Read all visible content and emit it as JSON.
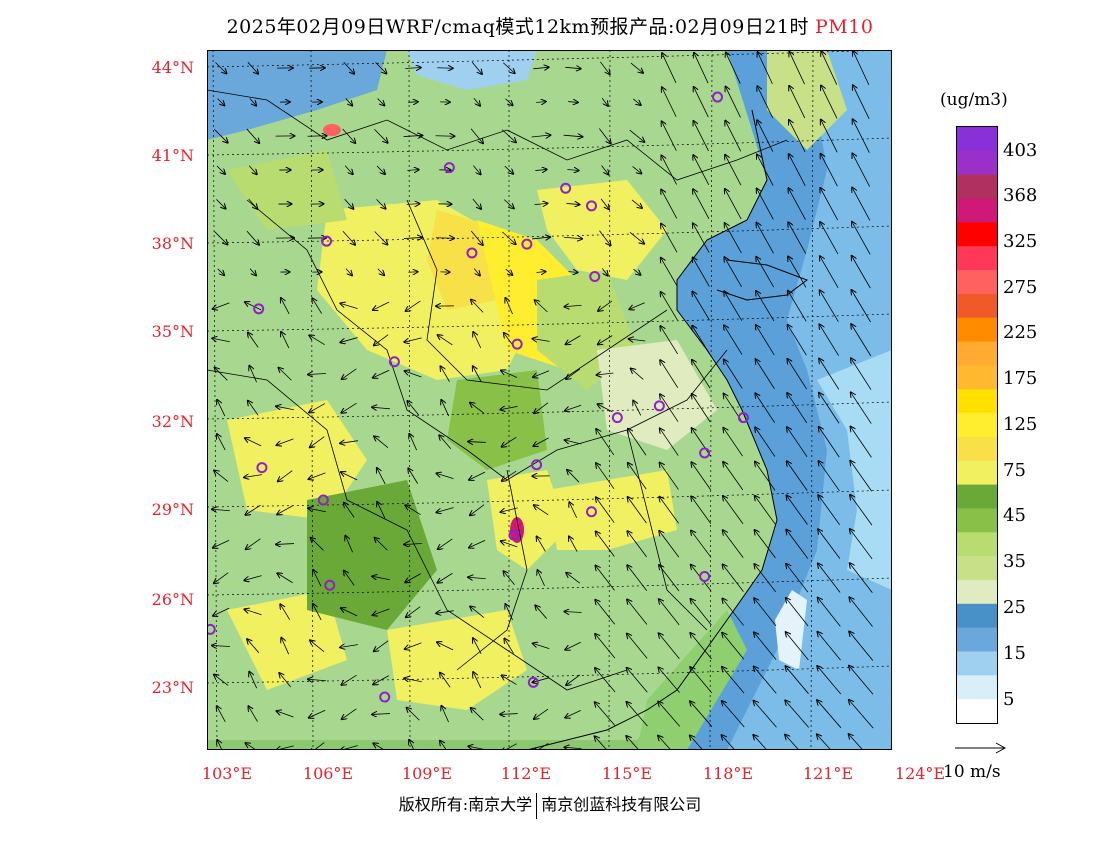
{
  "title": {
    "text": "2025年02月09日WRF/cmaq模式12km预报产品:02月09日21时",
    "product": "PM10"
  },
  "map": {
    "lat_labels": [
      "44°N",
      "41°N",
      "38°N",
      "35°N",
      "32°N",
      "29°N",
      "26°N",
      "23°N"
    ],
    "lon_labels": [
      "103°E",
      "106°E",
      "109°E",
      "112°E",
      "115°E",
      "118°E",
      "121°E",
      "124°E"
    ],
    "lon_range": [
      102.8,
      124
    ],
    "lat_range": [
      21,
      44.8
    ],
    "stations": [
      {
        "lon": 118.6,
        "lat": 43.2
      },
      {
        "lon": 110.3,
        "lat": 40.8
      },
      {
        "lon": 113.9,
        "lat": 40.1
      },
      {
        "lon": 114.7,
        "lat": 39.5
      },
      {
        "lon": 106.5,
        "lat": 38.3
      },
      {
        "lon": 111.0,
        "lat": 37.9
      },
      {
        "lon": 112.7,
        "lat": 38.2
      },
      {
        "lon": 114.8,
        "lat": 37.1
      },
      {
        "lon": 104.4,
        "lat": 36.0
      },
      {
        "lon": 112.4,
        "lat": 34.8
      },
      {
        "lon": 108.6,
        "lat": 34.2
      },
      {
        "lon": 115.5,
        "lat": 32.3
      },
      {
        "lon": 116.8,
        "lat": 32.7
      },
      {
        "lon": 119.4,
        "lat": 32.3
      },
      {
        "lon": 104.5,
        "lat": 30.6
      },
      {
        "lon": 113.0,
        "lat": 30.7
      },
      {
        "lon": 118.2,
        "lat": 31.1
      },
      {
        "lon": 106.4,
        "lat": 29.5
      },
      {
        "lon": 112.3,
        "lat": 28.3
      },
      {
        "lon": 114.7,
        "lat": 29.1
      },
      {
        "lon": 106.6,
        "lat": 26.6
      },
      {
        "lon": 102.9,
        "lat": 25.1
      },
      {
        "lon": 118.2,
        "lat": 26.9
      },
      {
        "lon": 108.3,
        "lat": 22.8
      },
      {
        "lon": 112.9,
        "lat": 23.3
      }
    ]
  },
  "legend": {
    "unit": "(ug/m3)",
    "labels": [
      "403",
      "368",
      "325",
      "275",
      "225",
      "175",
      "125",
      "75",
      "45",
      "35",
      "25",
      "15",
      "5"
    ],
    "colors": [
      "#8a30d8",
      "#9b30c8",
      "#b03060",
      "#d01878",
      "#ff0000",
      "#ff3858",
      "#ff6060",
      "#f05a28",
      "#ff8c00",
      "#ffaa30",
      "#ffb830",
      "#ffe000",
      "#ffee30",
      "#f8e048",
      "#f0f060",
      "#6aa838",
      "#88c048",
      "#b8dc70",
      "#c8e088",
      "#e0ecc0",
      "#4890c8",
      "#6aa8dc",
      "#a0d0f0",
      "#d8eef8",
      "#ffffff"
    ]
  },
  "wind": {
    "scale_label": "10 m/s"
  },
  "copyright": {
    "left": "版权所有:南京大学",
    "right": "南京创蓝科技有限公司"
  }
}
